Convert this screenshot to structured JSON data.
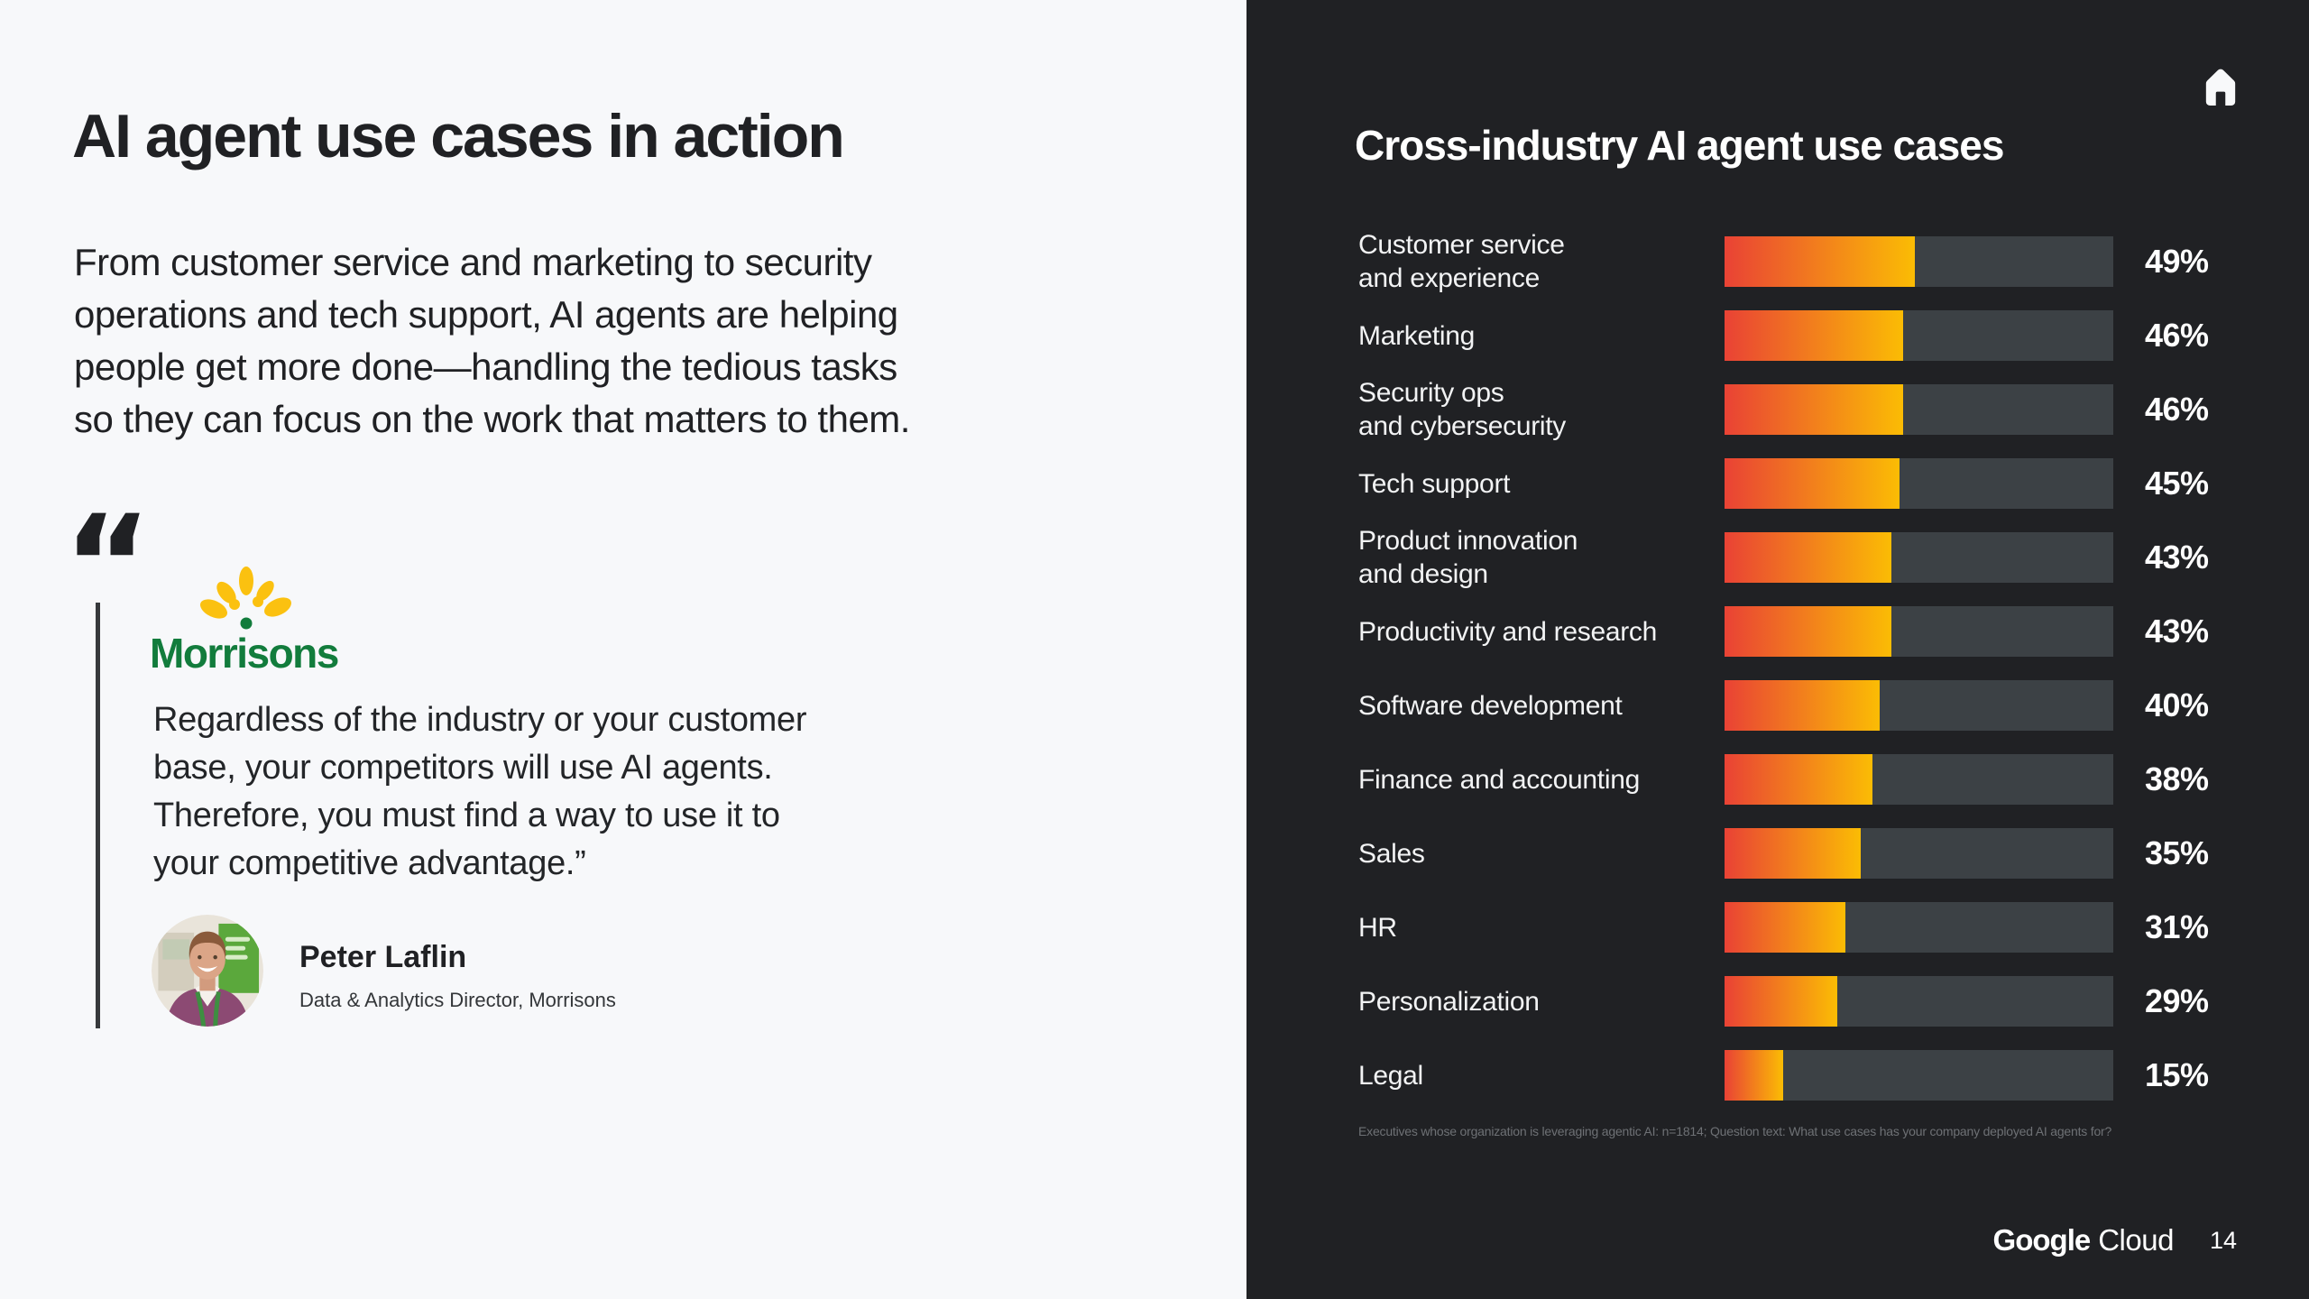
{
  "left_panel": {
    "title": "AI agent use cases in action",
    "paragraph": "From customer service and marketing to security\noperations and tech support, AI agents are helping\npeople get more done—handling the tedious tasks\nso they can focus on the work that matters to them.",
    "quote": {
      "mark": "“",
      "logo_text": "Morrisons",
      "text": "Regardless of the industry or your customer\nbase, your competitors will use AI agents.\nTherefore, you must find a way to use it to\nyour competitive advantage.”",
      "author": "Peter Laflin",
      "role": "Data & Analytics Director, Morrisons"
    }
  },
  "right_panel": {
    "icons": {
      "home": "home-icon"
    },
    "footer": {
      "brand_bold": "Google",
      "brand_light": "Cloud",
      "page": "14"
    }
  },
  "chart_data": {
    "type": "bar",
    "orientation": "horizontal",
    "title": "Cross-industry AI agent use cases",
    "categories": [
      "Customer service\nand experience",
      "Marketing",
      "Security ops\nand cybersecurity",
      "Tech support",
      "Product innovation\nand design",
      "Productivity and research",
      "Software development",
      "Finance and accounting",
      "Sales",
      "HR",
      "Personalization",
      "Legal"
    ],
    "values": [
      49,
      46,
      46,
      45,
      43,
      43,
      40,
      38,
      35,
      31,
      29,
      15
    ],
    "value_suffix": "%",
    "xlim": [
      0,
      100
    ],
    "grid": false,
    "legend": "none",
    "bar_gradient": [
      "#E94235",
      "#FBBC04"
    ],
    "track_color": "#3C4145",
    "footnote": "Executives whose organization is leveraging agentic AI: n=1814; Question text: What use cases has your company deployed AI agents for?"
  },
  "colors": {
    "panel_light": "#F7F8FA",
    "panel_dark": "#202124",
    "text_dark": "#202124",
    "text_light": "#FFFFFF",
    "morrisons_green": "#127C3C",
    "morrisons_yellow": "#FBC110"
  }
}
